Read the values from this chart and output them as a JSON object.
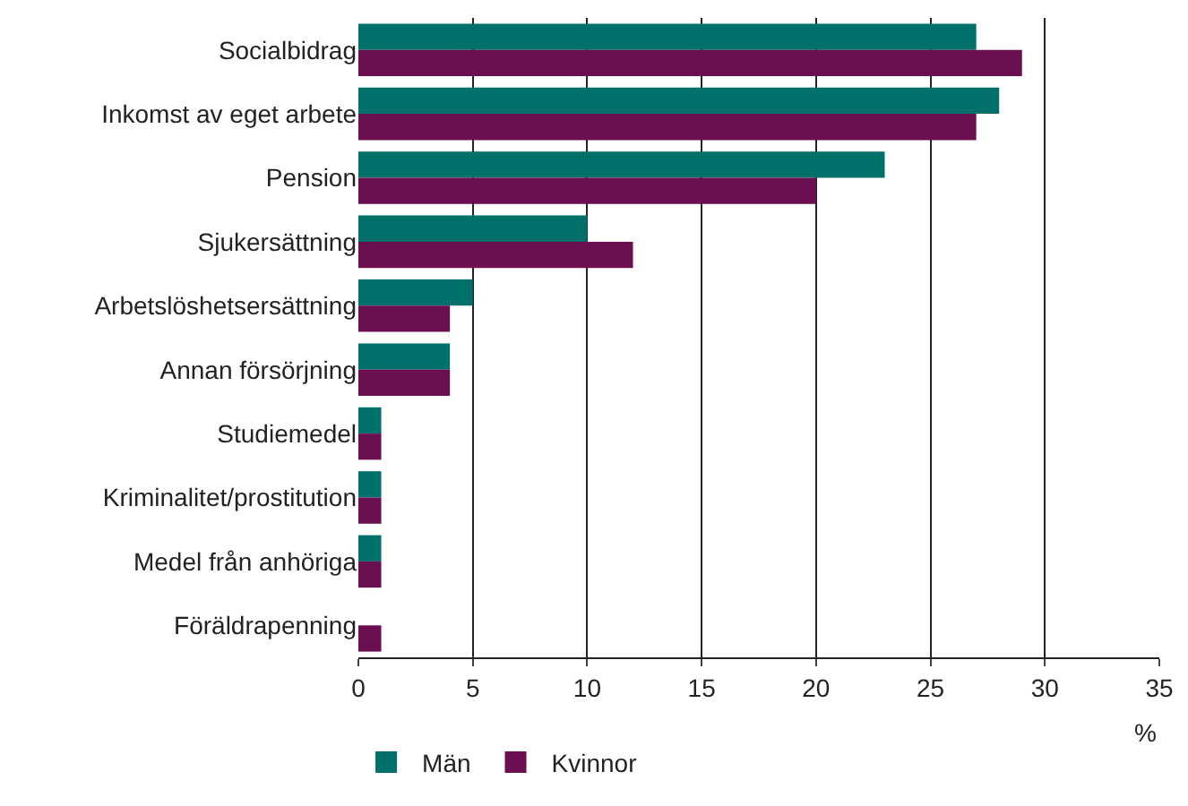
{
  "chart_data": {
    "type": "bar",
    "orientation": "horizontal",
    "categories": [
      "Socialbidrag",
      "Inkomst av eget arbete",
      "Pension",
      "Sjukersättning",
      "Arbetslöshetsersättning",
      "Annan försörjning",
      "Studiemedel",
      "Kriminalitet/prostitution",
      "Medel från anhöriga",
      "Föräldrapenning"
    ],
    "series": [
      {
        "name": "Män",
        "color": "#00706b",
        "values": [
          27,
          28,
          23,
          10,
          5,
          4,
          1,
          1,
          1,
          0
        ]
      },
      {
        "name": "Kvinnor",
        "color": "#6b0f52",
        "values": [
          29,
          27,
          20,
          12,
          4,
          4,
          1,
          1,
          1,
          1
        ]
      }
    ],
    "xlim": [
      0,
      35
    ],
    "xticks": [
      0,
      5,
      10,
      15,
      20,
      25,
      30,
      35
    ],
    "xlabel": "%",
    "grid": "x",
    "legend": "bottom left"
  }
}
